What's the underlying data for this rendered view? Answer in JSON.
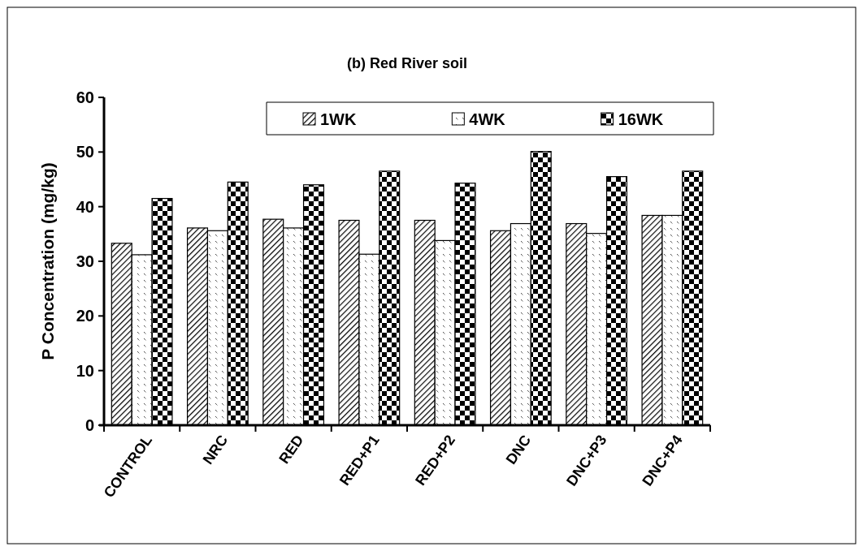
{
  "chart_data": {
    "type": "bar",
    "title": "(b) Red River soil",
    "ylabel": "P Concentration (mg/kg)",
    "categories": [
      "CONTROL",
      "NRC",
      "RED",
      "RED+P1",
      "RED+P2",
      "DNC",
      "DNC+P3",
      "DNC+P4"
    ],
    "series": [
      {
        "name": "1WK",
        "color": "#000000",
        "values": [
          33.3,
          36.1,
          37.7,
          37.5,
          37.5,
          35.6,
          36.9,
          38.4
        ]
      },
      {
        "name": "4WK",
        "color": "#000000",
        "values": [
          31.2,
          35.6,
          36.1,
          31.3,
          33.8,
          36.9,
          35.1,
          38.4
        ]
      },
      {
        "name": "16WK",
        "color": "#000000",
        "values": [
          41.5,
          44.5,
          44.0,
          46.5,
          44.3,
          50.1,
          45.5,
          46.5
        ]
      }
    ],
    "ylim": [
      0,
      60
    ],
    "yticks": [
      0,
      10,
      20,
      30,
      40,
      50,
      60
    ],
    "legend": "top right",
    "grid": false
  }
}
